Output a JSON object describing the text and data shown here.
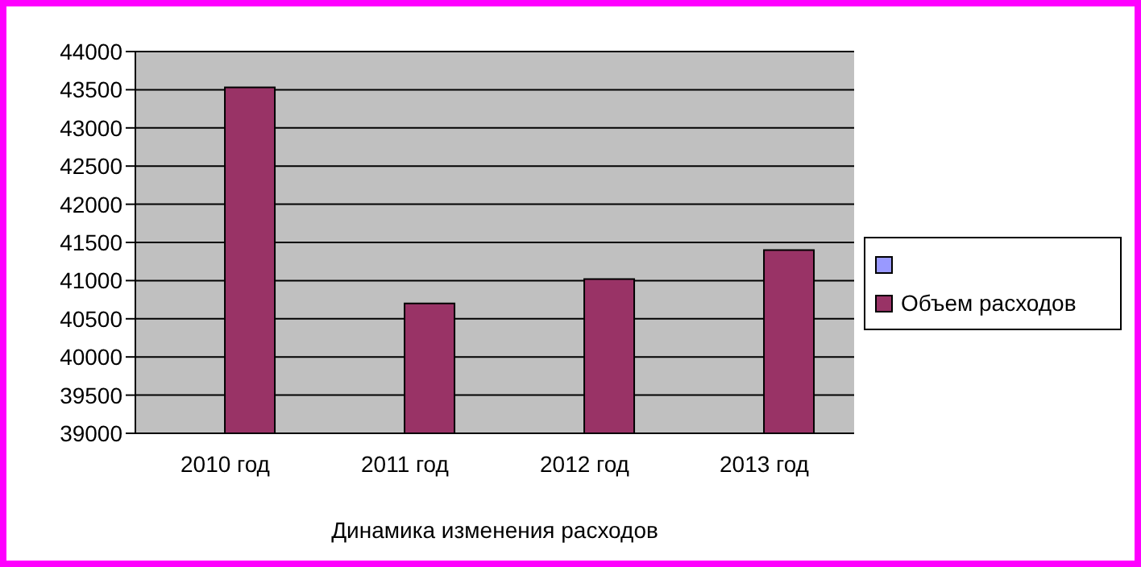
{
  "chart_data": {
    "type": "bar",
    "xlabel": "Динамика изменения расходов",
    "categories": [
      "2010 год",
      "2011 год",
      "2012 год",
      "2013 год"
    ],
    "series": [
      {
        "color": "#9999ff",
        "values": [
          null,
          null,
          null,
          null
        ]
      },
      {
        "name": "Объем расходов",
        "color": "#993366",
        "values": [
          43530,
          40700,
          41020,
          41400
        ]
      }
    ],
    "ylim": [
      39000,
      44000
    ],
    "yticks": [
      39000,
      39500,
      40000,
      40500,
      41000,
      41500,
      42000,
      42500,
      43000,
      43500,
      44000
    ],
    "grid": "y",
    "legend": "right"
  }
}
